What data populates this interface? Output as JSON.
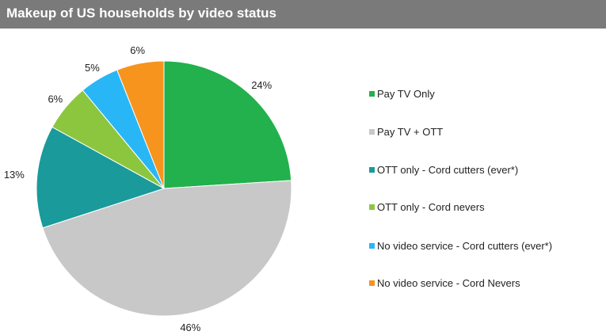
{
  "title": "Makeup of US households by video status",
  "chart_data": {
    "type": "pie",
    "title": "Makeup of US households by video status",
    "categories": [
      "Pay TV Only",
      "Pay TV + OTT",
      "OTT only - Cord cutters (ever*)",
      "OTT only - Cord nevers",
      "No video service - Cord cutters (ever*)",
      "No video service - Cord Nevers"
    ],
    "values": [
      24,
      46,
      13,
      6,
      5,
      6
    ],
    "labels": [
      "24%",
      "46%",
      "13%",
      "6%",
      "5%",
      "6%"
    ],
    "colors": [
      "#22b14c",
      "#c8c8c8",
      "#1a9a9a",
      "#8cc63f",
      "#29b6f6",
      "#f7941d"
    ],
    "legend_position": "right"
  },
  "legend": [
    {
      "label": "Pay TV Only",
      "color": "#22b14c"
    },
    {
      "label": "Pay TV + OTT",
      "color": "#c8c8c8"
    },
    {
      "label": "OTT only - Cord cutters (ever*)",
      "color": "#1a9a9a"
    },
    {
      "label": "OTT only - Cord nevers",
      "color": "#8cc63f"
    },
    {
      "label": "No video service - Cord cutters (ever*)",
      "color": "#29b6f6"
    },
    {
      "label": "No video service - Cord Nevers",
      "color": "#f7941d"
    }
  ]
}
